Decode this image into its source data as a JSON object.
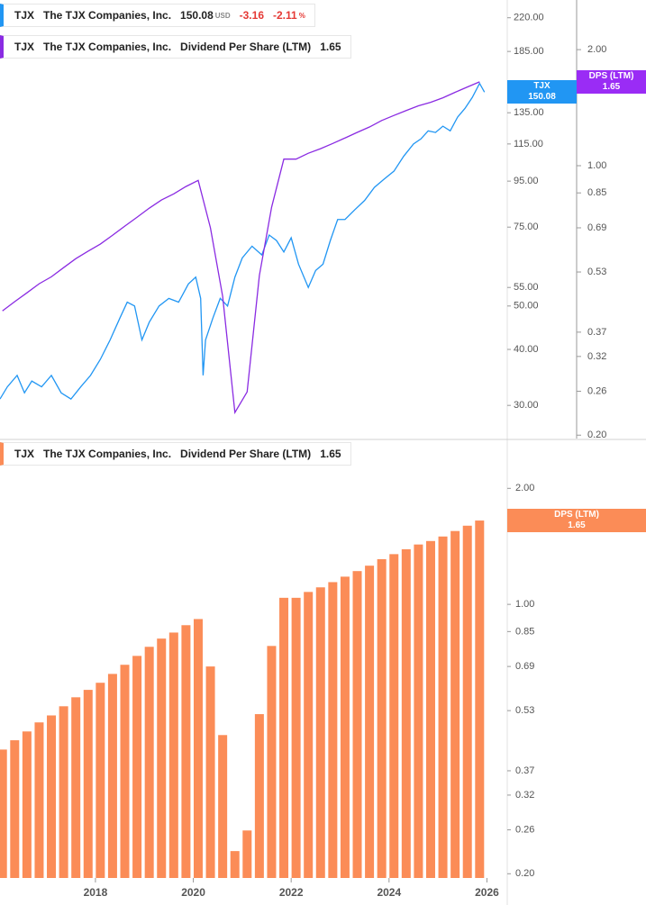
{
  "chart_data": [
    {
      "type": "line",
      "legends": [
        {
          "ticker": "TJX",
          "name": "The TJX Companies, Inc.",
          "price": 150.08,
          "currency": "USD",
          "change": -3.16,
          "change_pct": -2.11,
          "pct_unit": "%"
        },
        {
          "ticker": "TJX",
          "name": "The TJX Companies, Inc.",
          "value": 1.65
        }
      ],
      "log_scale": true,
      "xlim": [
        2016.05,
        2026.36
      ],
      "ylim": [
        25.3,
        241
      ],
      "yticks": [
        {
          "value": 30,
          "label": "30.00"
        },
        {
          "value": 40,
          "label": "40.00"
        },
        {
          "value": 50,
          "label": "50.00"
        },
        {
          "value": 55,
          "label": "55.00"
        },
        {
          "value": 75,
          "label": "75.00"
        },
        {
          "value": 95,
          "label": "95.00"
        },
        {
          "value": 115,
          "label": "115.00"
        },
        {
          "value": 135,
          "label": "135.00"
        },
        {
          "value": 185,
          "label": "185.00"
        },
        {
          "value": 220,
          "label": "220.00"
        }
      ],
      "y2lim": [
        0.196,
        2.69
      ],
      "y2ticks": [
        {
          "value": 0.2,
          "label": "0.20"
        },
        0.26,
        0.32,
        0.37,
        0.53,
        0.69,
        0.85,
        {
          "value": 1,
          "label": "1.00"
        },
        {
          "value": 2,
          "label": "2.00"
        }
      ],
      "series": [
        {
          "name": "TJX",
          "color": "#2196f3",
          "x": [
            2016.05,
            2016.2,
            2016.4,
            2016.55,
            2016.7,
            2016.9,
            2017.1,
            2017.3,
            2017.5,
            2017.7,
            2017.9,
            2018.1,
            2018.3,
            2018.5,
            2018.65,
            2018.8,
            2018.95,
            2019.1,
            2019.3,
            2019.5,
            2019.7,
            2019.9,
            2020.05,
            2020.15,
            2020.2,
            2020.25,
            2020.4,
            2020.55,
            2020.7,
            2020.85,
            2021.0,
            2021.2,
            2021.4,
            2021.55,
            2021.7,
            2021.85,
            2022.0,
            2022.15,
            2022.35,
            2022.5,
            2022.65,
            2022.8,
            2022.95,
            2023.1,
            2023.3,
            2023.5,
            2023.7,
            2023.9,
            2024.1,
            2024.3,
            2024.5,
            2024.65,
            2024.8,
            2024.95,
            2025.1,
            2025.25,
            2025.4,
            2025.55,
            2025.7,
            2025.85,
            2025.95
          ],
          "values": [
            31,
            33,
            35,
            32,
            34,
            33,
            35,
            32,
            31,
            33,
            35,
            38,
            42,
            47,
            51,
            50,
            42,
            46,
            50,
            52,
            51,
            56,
            58,
            52,
            35,
            42,
            47,
            52,
            50,
            58,
            64,
            68,
            65,
            72,
            70,
            66,
            71,
            62,
            55,
            60,
            62,
            70,
            78,
            78,
            82,
            86,
            92,
            96,
            100,
            108,
            115,
            118,
            123,
            122,
            126,
            123,
            132,
            138,
            146,
            157,
            150.08
          ]
        },
        {
          "name": "Dividend Per Share (LTM)",
          "color": "#8a2be2",
          "axis": "y2",
          "x": [
            2016.1,
            2016.35,
            2016.6,
            2016.85,
            2017.1,
            2017.35,
            2017.6,
            2017.85,
            2018.1,
            2018.35,
            2018.6,
            2018.85,
            2019.1,
            2019.35,
            2019.6,
            2019.85,
            2020.1,
            2020.35,
            2020.6,
            2020.85,
            2021.1,
            2021.35,
            2021.6,
            2021.85,
            2022.1,
            2022.35,
            2022.6,
            2022.85,
            2023.1,
            2023.35,
            2023.6,
            2023.85,
            2024.1,
            2024.35,
            2024.6,
            2024.85,
            2025.1,
            2025.35,
            2025.6,
            2025.85
          ],
          "values": [
            0.42,
            0.444,
            0.468,
            0.494,
            0.515,
            0.544,
            0.574,
            0.6,
            0.626,
            0.66,
            0.697,
            0.735,
            0.776,
            0.815,
            0.845,
            0.883,
            0.916,
            0.69,
            0.458,
            0.229,
            0.259,
            0.519,
            0.78,
            1.04,
            1.04,
            1.077,
            1.107,
            1.142,
            1.18,
            1.22,
            1.26,
            1.31,
            1.35,
            1.39,
            1.43,
            1.46,
            1.5,
            1.55,
            1.6,
            1.65
          ]
        }
      ],
      "badges": [
        {
          "label": "TJX",
          "value": 150.08,
          "color": "#2196f3",
          "axis": "y"
        },
        {
          "label": "DPS (LTM)",
          "value": 1.65,
          "color": "#9a2cf5",
          "axis": "y2"
        }
      ]
    },
    {
      "type": "bar",
      "legends": [
        {
          "ticker": "TJX",
          "name": "The TJX Companies, Inc.",
          "value": 1.65
        }
      ],
      "log_scale": true,
      "xlim": [
        2016.05,
        2026.36
      ],
      "xticks": [
        2018,
        2020,
        2022,
        2024,
        2026
      ],
      "ylim": [
        0.195,
        2.65
      ],
      "yticks": [
        {
          "value": 0.2,
          "label": "0.20"
        },
        0.26,
        0.32,
        0.37,
        0.53,
        0.69,
        0.85,
        {
          "value": 1,
          "label": "1.00"
        },
        {
          "value": 2,
          "label": "2.00"
        }
      ],
      "series": [
        {
          "name": "Dividend Per Share (LTM)",
          "color": "#fb8c57",
          "x": [
            2016.1,
            2016.35,
            2016.6,
            2016.85,
            2017.1,
            2017.35,
            2017.6,
            2017.85,
            2018.1,
            2018.35,
            2018.6,
            2018.85,
            2019.1,
            2019.35,
            2019.6,
            2019.85,
            2020.1,
            2020.35,
            2020.6,
            2020.85,
            2021.1,
            2021.35,
            2021.6,
            2021.85,
            2022.1,
            2022.35,
            2022.6,
            2022.85,
            2023.1,
            2023.35,
            2023.6,
            2023.85,
            2024.1,
            2024.35,
            2024.6,
            2024.85,
            2025.1,
            2025.35,
            2025.6,
            2025.85
          ],
          "values": [
            0.42,
            0.444,
            0.468,
            0.494,
            0.515,
            0.544,
            0.574,
            0.6,
            0.626,
            0.66,
            0.697,
            0.735,
            0.776,
            0.815,
            0.845,
            0.883,
            0.916,
            0.69,
            0.458,
            0.229,
            0.259,
            0.519,
            0.78,
            1.04,
            1.04,
            1.077,
            1.107,
            1.142,
            1.18,
            1.22,
            1.26,
            1.31,
            1.35,
            1.39,
            1.43,
            1.46,
            1.5,
            1.55,
            1.6,
            1.65
          ]
        }
      ],
      "badges": [
        {
          "label": "DPS (LTM)",
          "value": 1.65,
          "color": "#fb8c57",
          "axis": "y"
        }
      ]
    }
  ]
}
